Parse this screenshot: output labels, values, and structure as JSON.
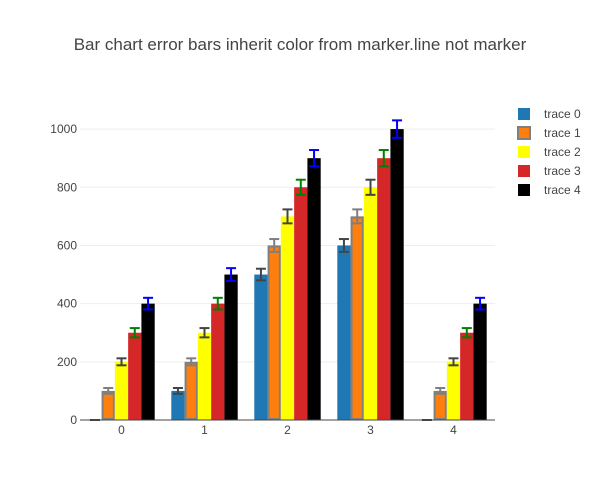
{
  "chart_data": {
    "type": "bar",
    "title": "Bar chart error bars inherit color from marker.line not marker",
    "xlabel": "",
    "ylabel": "",
    "categories": [
      "0",
      "1",
      "2",
      "3",
      "4"
    ],
    "y_ticks": [
      "0",
      "200",
      "400",
      "600",
      "800",
      "1000"
    ],
    "ylim": [
      0,
      1100
    ],
    "grid": true,
    "legend_position": "top-right",
    "series": [
      {
        "name": "trace 0",
        "values": [
          0,
          100,
          500,
          600,
          0
        ],
        "error": [
          0,
          10,
          20,
          22,
          0
        ],
        "fill": "#1f77b4",
        "line_color": "#444444",
        "line_width": 0
      },
      {
        "name": "trace 1",
        "values": [
          100,
          200,
          600,
          700,
          100
        ],
        "error": [
          10,
          12,
          22,
          24,
          10
        ],
        "fill": "#ff7f0e",
        "line_color": "#7f7f7f",
        "line_width": 2
      },
      {
        "name": "trace 2",
        "values": [
          200,
          300,
          700,
          800,
          200
        ],
        "error": [
          12,
          16,
          24,
          26,
          12
        ],
        "fill": "#ffff00",
        "line_color": "#444444",
        "line_width": 0
      },
      {
        "name": "trace 3",
        "values": [
          300,
          400,
          800,
          900,
          300
        ],
        "error": [
          16,
          20,
          26,
          28,
          16
        ],
        "fill": "#d62728",
        "line_color": "#008000",
        "line_width": 0
      },
      {
        "name": "trace 4",
        "values": [
          400,
          500,
          900,
          1000,
          400
        ],
        "error": [
          20,
          22,
          28,
          30,
          20
        ],
        "fill": "#000000",
        "line_color": "#0000ff",
        "line_width": 0
      }
    ]
  }
}
